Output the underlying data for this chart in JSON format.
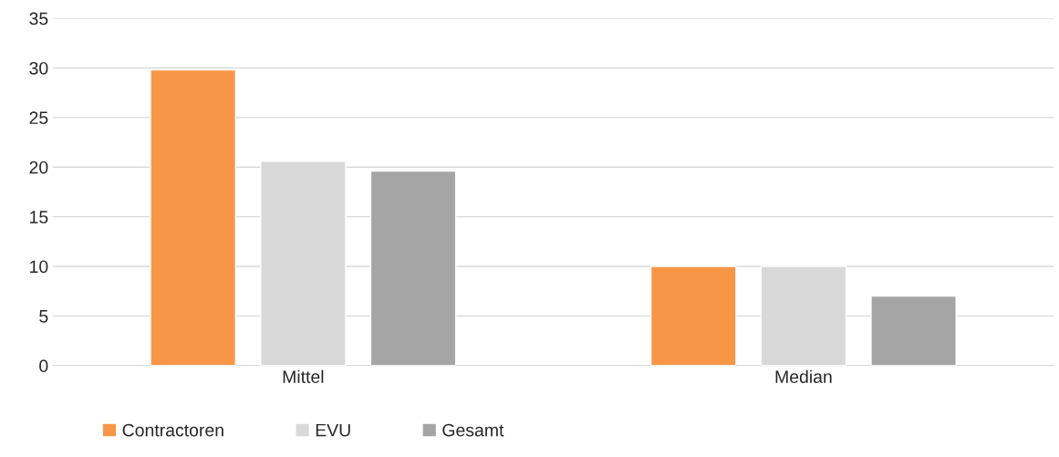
{
  "chart_data": {
    "type": "bar",
    "categories": [
      "Mittel",
      "Median"
    ],
    "series": [
      {
        "name": "Contractoren",
        "color": "#f79646",
        "values": [
          29.8,
          10
        ]
      },
      {
        "name": "EVU",
        "color": "#d9d9d9",
        "values": [
          20.6,
          10
        ]
      },
      {
        "name": "Gesamt",
        "color": "#a5a5a5",
        "values": [
          19.6,
          7
        ]
      }
    ],
    "ylim": [
      0,
      35
    ],
    "yticks": [
      0,
      5,
      10,
      15,
      20,
      25,
      30,
      35
    ],
    "grid": "y",
    "legend": "bottom"
  }
}
